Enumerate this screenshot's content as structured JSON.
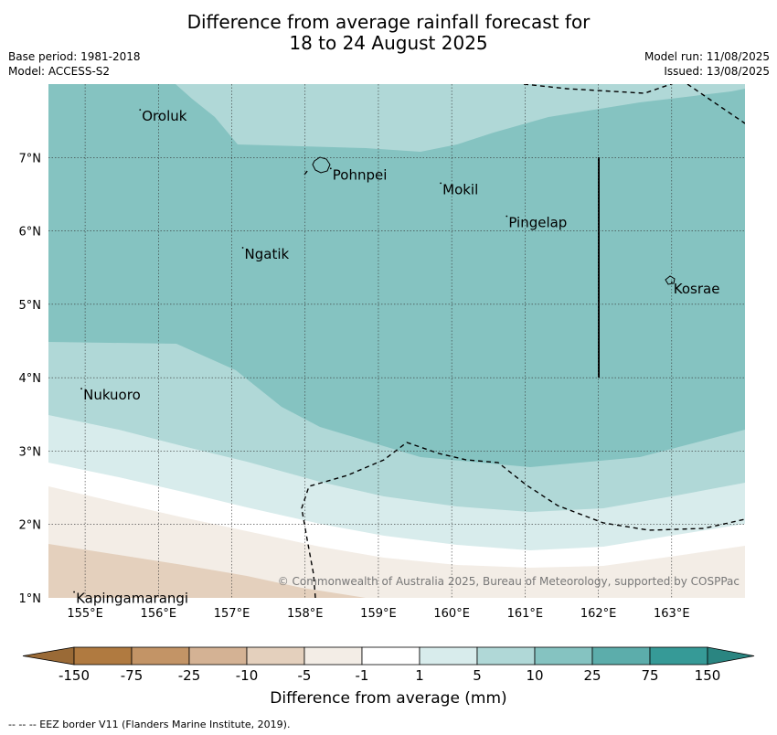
{
  "title_line1": "Difference from average rainfall forecast for",
  "title_line2": "18 to 24 August 2025",
  "base_period": "Base period: 1981-2018",
  "model": "Model: ACCESS-S2",
  "model_run": "Model run: 11/08/2025",
  "issued": "Issued: 13/08/2025",
  "copyright": "© Commonwealth of Australia 2025, Bureau of Meteorology, supported by COSPPac",
  "colorbar_title": "Difference from average (mm)",
  "footnote": "--  --  -- EEZ border V11 (Flanders Marine Institute, 2019).",
  "map": {
    "lon_range": [
      154.5,
      164.0
    ],
    "lat_range": [
      1.0,
      8.0
    ],
    "lon_ticks": [
      {
        "value": 155,
        "label": "155°E"
      },
      {
        "value": 156,
        "label": "156°E"
      },
      {
        "value": 157,
        "label": "157°E"
      },
      {
        "value": 158,
        "label": "158°E"
      },
      {
        "value": 159,
        "label": "159°E"
      },
      {
        "value": 160,
        "label": "160°E"
      },
      {
        "value": 161,
        "label": "161°E"
      },
      {
        "value": 162,
        "label": "162°E"
      },
      {
        "value": 163,
        "label": "163°E"
      }
    ],
    "lat_ticks": [
      {
        "value": 7,
        "label": "7°N"
      },
      {
        "value": 6,
        "label": "6°N"
      },
      {
        "value": 5,
        "label": "5°N"
      },
      {
        "value": 4,
        "label": "4°N"
      },
      {
        "value": 3,
        "label": "3°N"
      },
      {
        "value": 2,
        "label": "2°N"
      },
      {
        "value": 1,
        "label": "1°N"
      }
    ],
    "places": [
      {
        "name": "Oroluk",
        "lon": 155.75,
        "lat": 7.65
      },
      {
        "name": "Pohnpei",
        "lon": 158.35,
        "lat": 6.85
      },
      {
        "name": "Mokil",
        "lon": 159.85,
        "lat": 6.65
      },
      {
        "name": "Pingelap",
        "lon": 160.75,
        "lat": 6.2
      },
      {
        "name": "Ngatik",
        "lon": 157.15,
        "lat": 5.77
      },
      {
        "name": "Kosrae",
        "lon": 163.0,
        "lat": 5.3
      },
      {
        "name": "Nukuoro",
        "lon": 154.95,
        "lat": 3.85
      },
      {
        "name": "Kapingamarangi",
        "lon": 154.85,
        "lat": 1.08
      }
    ]
  },
  "colorbar": {
    "colors": [
      "#b07a40",
      "#c39466",
      "#d4b294",
      "#e4d0bd",
      "#f3ede6",
      "#ffffff",
      "#d8ecec",
      "#b0d8d7",
      "#85c3c1",
      "#5cadab",
      "#369a97"
    ],
    "under_color": "#9a6a36",
    "over_color": "#2a8581",
    "labels": [
      "-150",
      "-75",
      "-25",
      "-10",
      "-5",
      "-1",
      "1",
      "5",
      "10",
      "25",
      "75",
      "150"
    ]
  }
}
